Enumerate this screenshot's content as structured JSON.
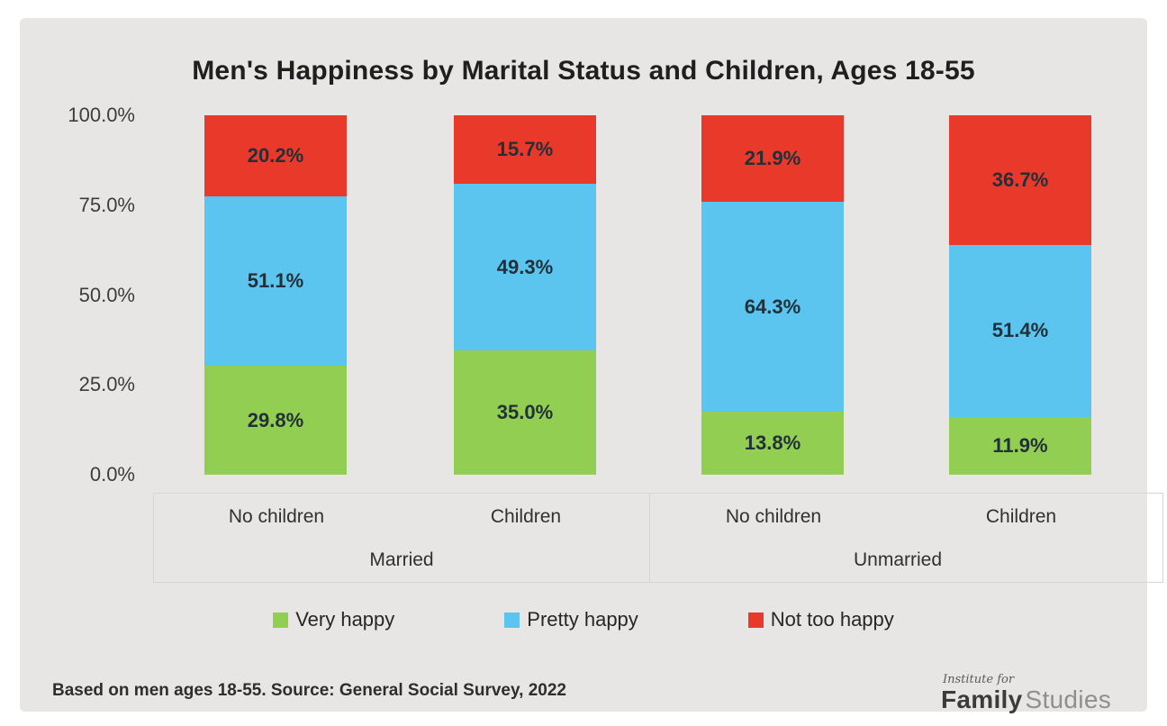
{
  "chart_data": {
    "type": "bar",
    "stacked_percent": true,
    "title": "Men's Happiness by Marital Status and Children, Ages 18-55",
    "y_axis": {
      "tick_labels": [
        "100.0%",
        "75.0%",
        "50.0%",
        "25.0%",
        "0.0%"
      ],
      "min": 0,
      "max": 100
    },
    "groups": [
      {
        "label": "Married",
        "categories": [
          "No children",
          "Children"
        ]
      },
      {
        "label": "Unmarried",
        "categories": [
          "No children",
          "Children"
        ]
      }
    ],
    "categories": [
      "Married / No children",
      "Married / Children",
      "Unmarried / No children",
      "Unmarried / Children"
    ],
    "series": [
      {
        "name": "Very happy",
        "color": "#92ce51",
        "values": [
          29.8,
          35.0,
          13.8,
          11.9
        ]
      },
      {
        "name": "Pretty happy",
        "color": "#5bc5f0",
        "values": [
          51.1,
          49.3,
          64.3,
          51.4
        ]
      },
      {
        "name": "Not too happy",
        "color": "#e8392b",
        "values": [
          20.2,
          15.7,
          21.9,
          36.7
        ]
      }
    ],
    "value_label_format": "{value}%",
    "legend_position": "bottom",
    "grid": false
  },
  "footer": {
    "source_text": "Based on men ages 18-55. Source: General Social Survey, 2022"
  },
  "logo": {
    "line1": "Institute for",
    "brand_bold": "Family",
    "brand_light": "Studies"
  }
}
